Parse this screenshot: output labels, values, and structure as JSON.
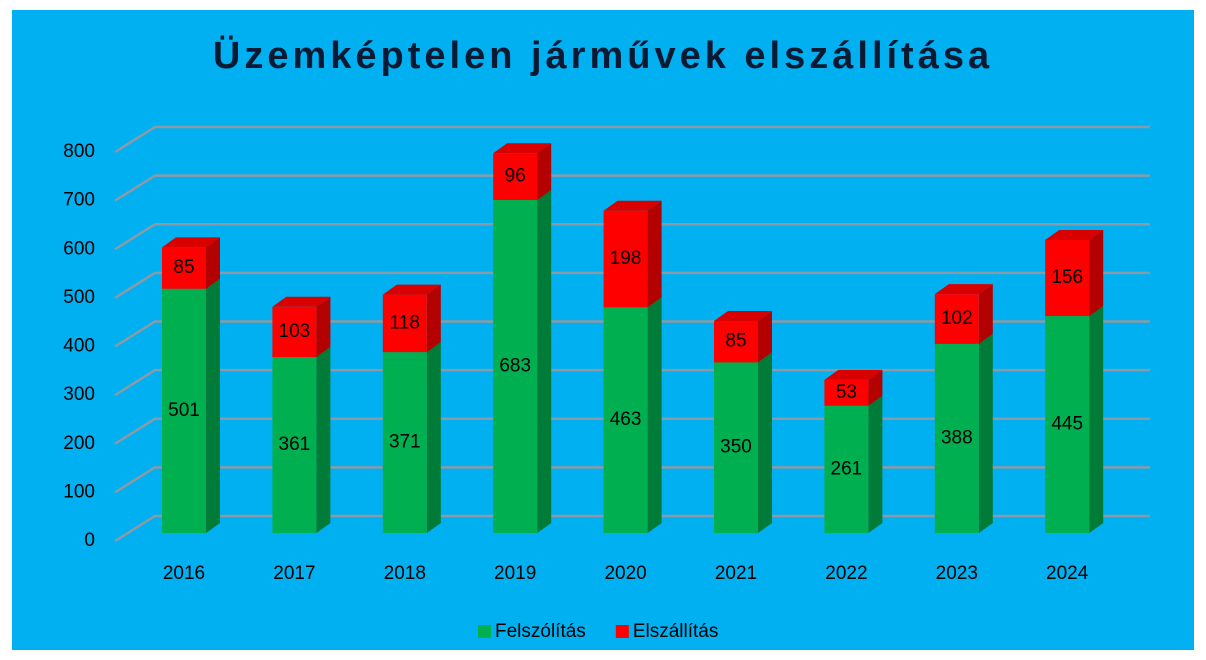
{
  "chart_data": {
    "type": "bar",
    "stacked": true,
    "title": "Üzemképtelen járművek elszállítása",
    "categories": [
      "2016",
      "2017",
      "2018",
      "2019",
      "2020",
      "2021",
      "2022",
      "2023",
      "2024"
    ],
    "series": [
      {
        "name": "Felszólítás",
        "color": "#00b050",
        "values": [
          501,
          361,
          371,
          683,
          463,
          350,
          261,
          388,
          445
        ]
      },
      {
        "name": "Elszállítás",
        "color": "#ff0000",
        "values": [
          85,
          103,
          118,
          96,
          198,
          85,
          53,
          102,
          156
        ]
      }
    ],
    "ylim": [
      0,
      800
    ],
    "yticks": [
      0,
      100,
      200,
      300,
      400,
      500,
      600,
      700,
      800
    ],
    "grid": true,
    "legend": "bottom"
  }
}
